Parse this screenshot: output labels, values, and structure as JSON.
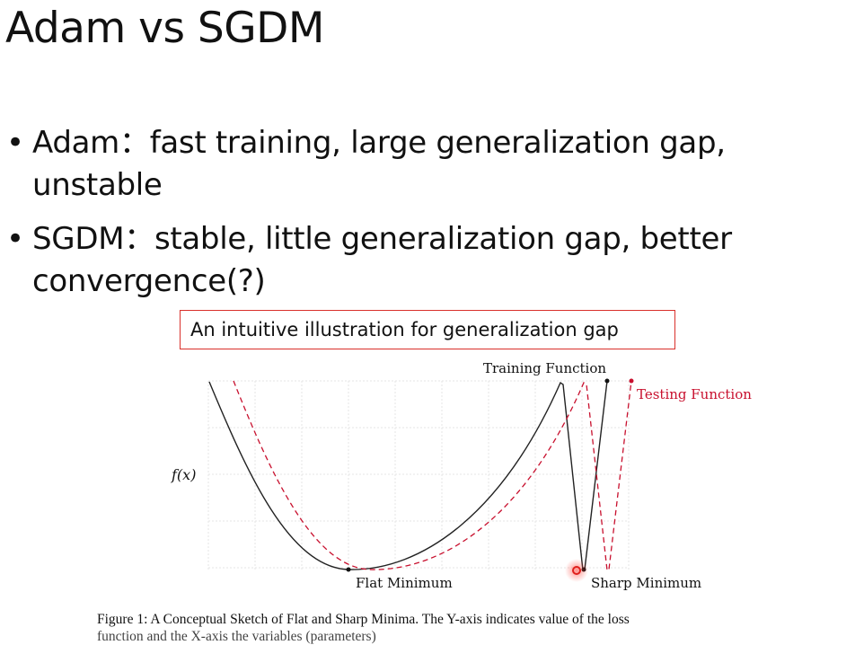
{
  "slide": {
    "title": "Adam vs SGDM"
  },
  "bullets": [
    {
      "label": "Adam：fast training, large generalization gap, unstable"
    },
    {
      "label": "SGDM：stable, little generalization gap, better convergence(?)"
    }
  ],
  "callout": {
    "text": "An intuitive illustration for generalization gap",
    "border_color": "#d9302b"
  },
  "figure": {
    "y_axis_label": "f(x)",
    "training_label": "Training Function",
    "testing_label": "Testing Function",
    "flat_label": "Flat Minimum",
    "sharp_label": "Sharp Minimum",
    "training_color": "#222222",
    "testing_color": "#c8102e",
    "highlight_color": "#e0201c",
    "caption_line1": "Figure 1:  A Conceptual Sketch of Flat and Sharp Minima.  The Y-axis indicates value of the loss",
    "caption_line2": "function and the X-axis the variables (parameters)"
  }
}
